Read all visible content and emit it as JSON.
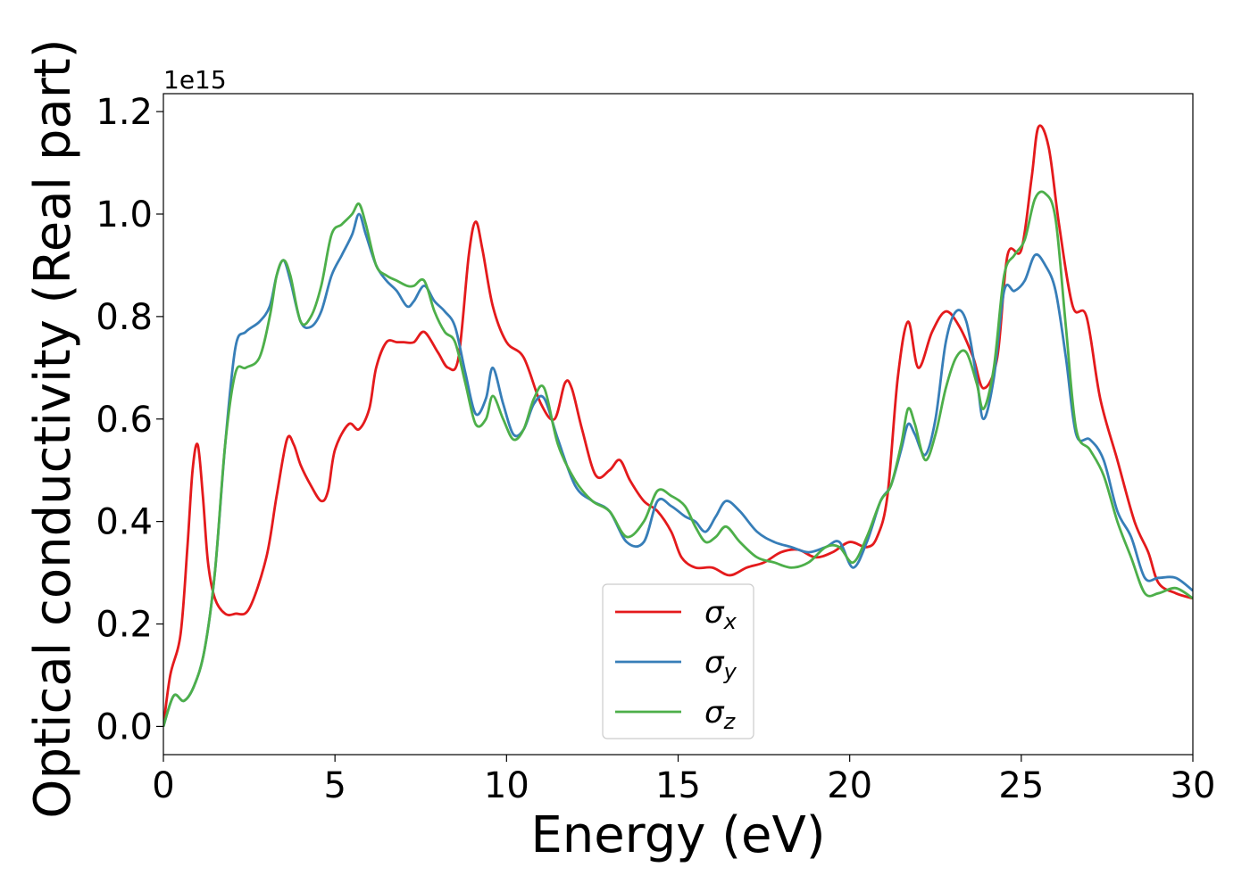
{
  "chart_data": {
    "type": "line",
    "xlabel": "Energy (eV)",
    "ylabel": "Optical conductivity (Real part)",
    "y_offset_label": "1e15",
    "y_scale": 1000000000000000.0,
    "xlim": [
      0,
      30
    ],
    "ylim": [
      -0.055,
      1.235
    ],
    "xticks": [
      0,
      5,
      10,
      15,
      20,
      25,
      30
    ],
    "yticks": [
      0.0,
      0.2,
      0.4,
      0.6,
      0.8,
      1.0,
      1.2
    ],
    "xtick_labels": [
      "0",
      "5",
      "10",
      "15",
      "20",
      "25",
      "30"
    ],
    "ytick_labels": [
      "0.0",
      "0.2",
      "0.4",
      "0.6",
      "0.8",
      "1.0",
      "1.2"
    ],
    "grid": false,
    "legend_position": "bottom-center",
    "series": [
      {
        "name": "σx",
        "name_main": "σ",
        "name_sub": "x",
        "color": "#e41a1c",
        "x": [
          0,
          0.2,
          0.5,
          0.7,
          0.85,
          1.0,
          1.15,
          1.3,
          1.5,
          1.8,
          2.1,
          2.5,
          3.0,
          3.3,
          3.6,
          3.8,
          4.0,
          4.3,
          4.6,
          4.8,
          5.0,
          5.4,
          5.7,
          6.0,
          6.2,
          6.5,
          6.8,
          7.0,
          7.3,
          7.6,
          8.0,
          8.3,
          8.6,
          8.9,
          9.1,
          9.3,
          9.6,
          10.0,
          10.5,
          11.0,
          11.4,
          11.7,
          11.9,
          12.2,
          12.6,
          13.0,
          13.3,
          13.6,
          14.0,
          14.4,
          14.8,
          15.1,
          15.5,
          16.0,
          16.5,
          17.0,
          17.5,
          18.0,
          18.5,
          19.0,
          19.5,
          20.0,
          20.5,
          20.8,
          21.1,
          21.4,
          21.7,
          22.0,
          22.4,
          22.8,
          23.2,
          23.6,
          23.9,
          24.3,
          24.6,
          25.0,
          25.3,
          25.5,
          25.8,
          26.1,
          26.5,
          26.9,
          27.3,
          27.8,
          28.3,
          28.7,
          29.0,
          29.5,
          30.0
        ],
        "values": [
          0.0,
          0.1,
          0.18,
          0.35,
          0.5,
          0.55,
          0.45,
          0.32,
          0.25,
          0.22,
          0.22,
          0.23,
          0.33,
          0.45,
          0.56,
          0.55,
          0.51,
          0.47,
          0.44,
          0.46,
          0.54,
          0.59,
          0.58,
          0.62,
          0.7,
          0.75,
          0.75,
          0.75,
          0.75,
          0.77,
          0.73,
          0.7,
          0.72,
          0.92,
          0.985,
          0.93,
          0.82,
          0.75,
          0.72,
          0.63,
          0.6,
          0.67,
          0.66,
          0.58,
          0.49,
          0.5,
          0.52,
          0.48,
          0.44,
          0.42,
          0.38,
          0.33,
          0.31,
          0.31,
          0.295,
          0.31,
          0.32,
          0.34,
          0.345,
          0.33,
          0.34,
          0.36,
          0.35,
          0.37,
          0.45,
          0.68,
          0.79,
          0.7,
          0.77,
          0.81,
          0.78,
          0.72,
          0.66,
          0.72,
          0.92,
          0.93,
          1.07,
          1.17,
          1.13,
          0.98,
          0.82,
          0.8,
          0.64,
          0.52,
          0.4,
          0.34,
          0.28,
          0.26,
          0.25
        ]
      },
      {
        "name": "σy",
        "name_main": "σ",
        "name_sub": "y",
        "color": "#377eb8",
        "x": [
          0,
          0.3,
          0.6,
          0.9,
          1.2,
          1.5,
          1.8,
          2.1,
          2.4,
          2.8,
          3.1,
          3.3,
          3.5,
          3.7,
          4.0,
          4.3,
          4.6,
          4.9,
          5.2,
          5.5,
          5.7,
          5.9,
          6.2,
          6.5,
          6.8,
          7.1,
          7.3,
          7.6,
          7.9,
          8.2,
          8.5,
          8.8,
          9.1,
          9.4,
          9.6,
          9.9,
          10.2,
          10.5,
          10.8,
          11.1,
          11.5,
          12.0,
          12.5,
          13.0,
          13.5,
          14.0,
          14.4,
          14.8,
          15.2,
          15.5,
          15.8,
          16.1,
          16.4,
          16.8,
          17.3,
          17.8,
          18.3,
          18.8,
          19.3,
          19.7,
          20.1,
          20.5,
          20.9,
          21.2,
          21.5,
          21.7,
          21.9,
          22.2,
          22.5,
          22.8,
          23.1,
          23.4,
          23.7,
          23.9,
          24.2,
          24.5,
          24.8,
          25.1,
          25.4,
          25.7,
          26.0,
          26.3,
          26.6,
          27.0,
          27.4,
          27.8,
          28.2,
          28.6,
          29.0,
          29.5,
          30.0
        ],
        "values": [
          0.0,
          0.06,
          0.05,
          0.08,
          0.15,
          0.3,
          0.55,
          0.74,
          0.77,
          0.79,
          0.82,
          0.88,
          0.91,
          0.87,
          0.79,
          0.78,
          0.81,
          0.88,
          0.92,
          0.96,
          1.0,
          0.96,
          0.9,
          0.87,
          0.85,
          0.82,
          0.83,
          0.86,
          0.83,
          0.81,
          0.78,
          0.69,
          0.61,
          0.64,
          0.7,
          0.63,
          0.57,
          0.58,
          0.63,
          0.64,
          0.56,
          0.47,
          0.44,
          0.42,
          0.36,
          0.36,
          0.44,
          0.43,
          0.41,
          0.4,
          0.38,
          0.41,
          0.44,
          0.42,
          0.38,
          0.36,
          0.35,
          0.34,
          0.35,
          0.36,
          0.31,
          0.36,
          0.44,
          0.47,
          0.54,
          0.59,
          0.57,
          0.53,
          0.6,
          0.75,
          0.81,
          0.79,
          0.68,
          0.6,
          0.68,
          0.85,
          0.85,
          0.87,
          0.92,
          0.9,
          0.85,
          0.72,
          0.57,
          0.56,
          0.52,
          0.42,
          0.37,
          0.29,
          0.29,
          0.29,
          0.265
        ]
      },
      {
        "name": "σz",
        "name_main": "σ",
        "name_sub": "z",
        "color": "#4daf4a",
        "x": [
          0,
          0.3,
          0.6,
          0.9,
          1.2,
          1.5,
          1.8,
          2.1,
          2.4,
          2.8,
          3.1,
          3.3,
          3.5,
          3.7,
          4.0,
          4.3,
          4.6,
          4.9,
          5.2,
          5.5,
          5.7,
          5.9,
          6.2,
          6.5,
          6.8,
          7.1,
          7.3,
          7.6,
          7.9,
          8.2,
          8.5,
          8.8,
          9.1,
          9.4,
          9.6,
          9.9,
          10.2,
          10.5,
          10.8,
          11.1,
          11.5,
          12.0,
          12.5,
          13.0,
          13.5,
          14.0,
          14.4,
          14.8,
          15.2,
          15.5,
          15.8,
          16.1,
          16.4,
          16.8,
          17.3,
          17.8,
          18.3,
          18.8,
          19.3,
          19.7,
          20.1,
          20.5,
          20.9,
          21.2,
          21.5,
          21.7,
          21.9,
          22.2,
          22.5,
          22.8,
          23.1,
          23.4,
          23.7,
          23.9,
          24.2,
          24.5,
          24.8,
          25.1,
          25.4,
          25.7,
          26.0,
          26.3,
          26.6,
          27.0,
          27.4,
          27.8,
          28.2,
          28.6,
          29.0,
          29.5,
          30.0
        ],
        "values": [
          0.0,
          0.06,
          0.05,
          0.08,
          0.15,
          0.3,
          0.55,
          0.69,
          0.7,
          0.72,
          0.8,
          0.88,
          0.91,
          0.88,
          0.79,
          0.8,
          0.86,
          0.96,
          0.98,
          1.0,
          1.02,
          0.98,
          0.9,
          0.88,
          0.87,
          0.86,
          0.86,
          0.87,
          0.81,
          0.77,
          0.75,
          0.67,
          0.59,
          0.6,
          0.645,
          0.6,
          0.56,
          0.58,
          0.64,
          0.66,
          0.55,
          0.48,
          0.44,
          0.42,
          0.37,
          0.4,
          0.46,
          0.45,
          0.43,
          0.39,
          0.36,
          0.37,
          0.39,
          0.36,
          0.33,
          0.32,
          0.31,
          0.32,
          0.35,
          0.35,
          0.32,
          0.37,
          0.44,
          0.47,
          0.55,
          0.62,
          0.59,
          0.52,
          0.57,
          0.66,
          0.72,
          0.73,
          0.67,
          0.62,
          0.7,
          0.88,
          0.92,
          0.95,
          1.03,
          1.04,
          0.99,
          0.78,
          0.58,
          0.54,
          0.49,
          0.4,
          0.33,
          0.26,
          0.26,
          0.27,
          0.25
        ]
      }
    ]
  }
}
